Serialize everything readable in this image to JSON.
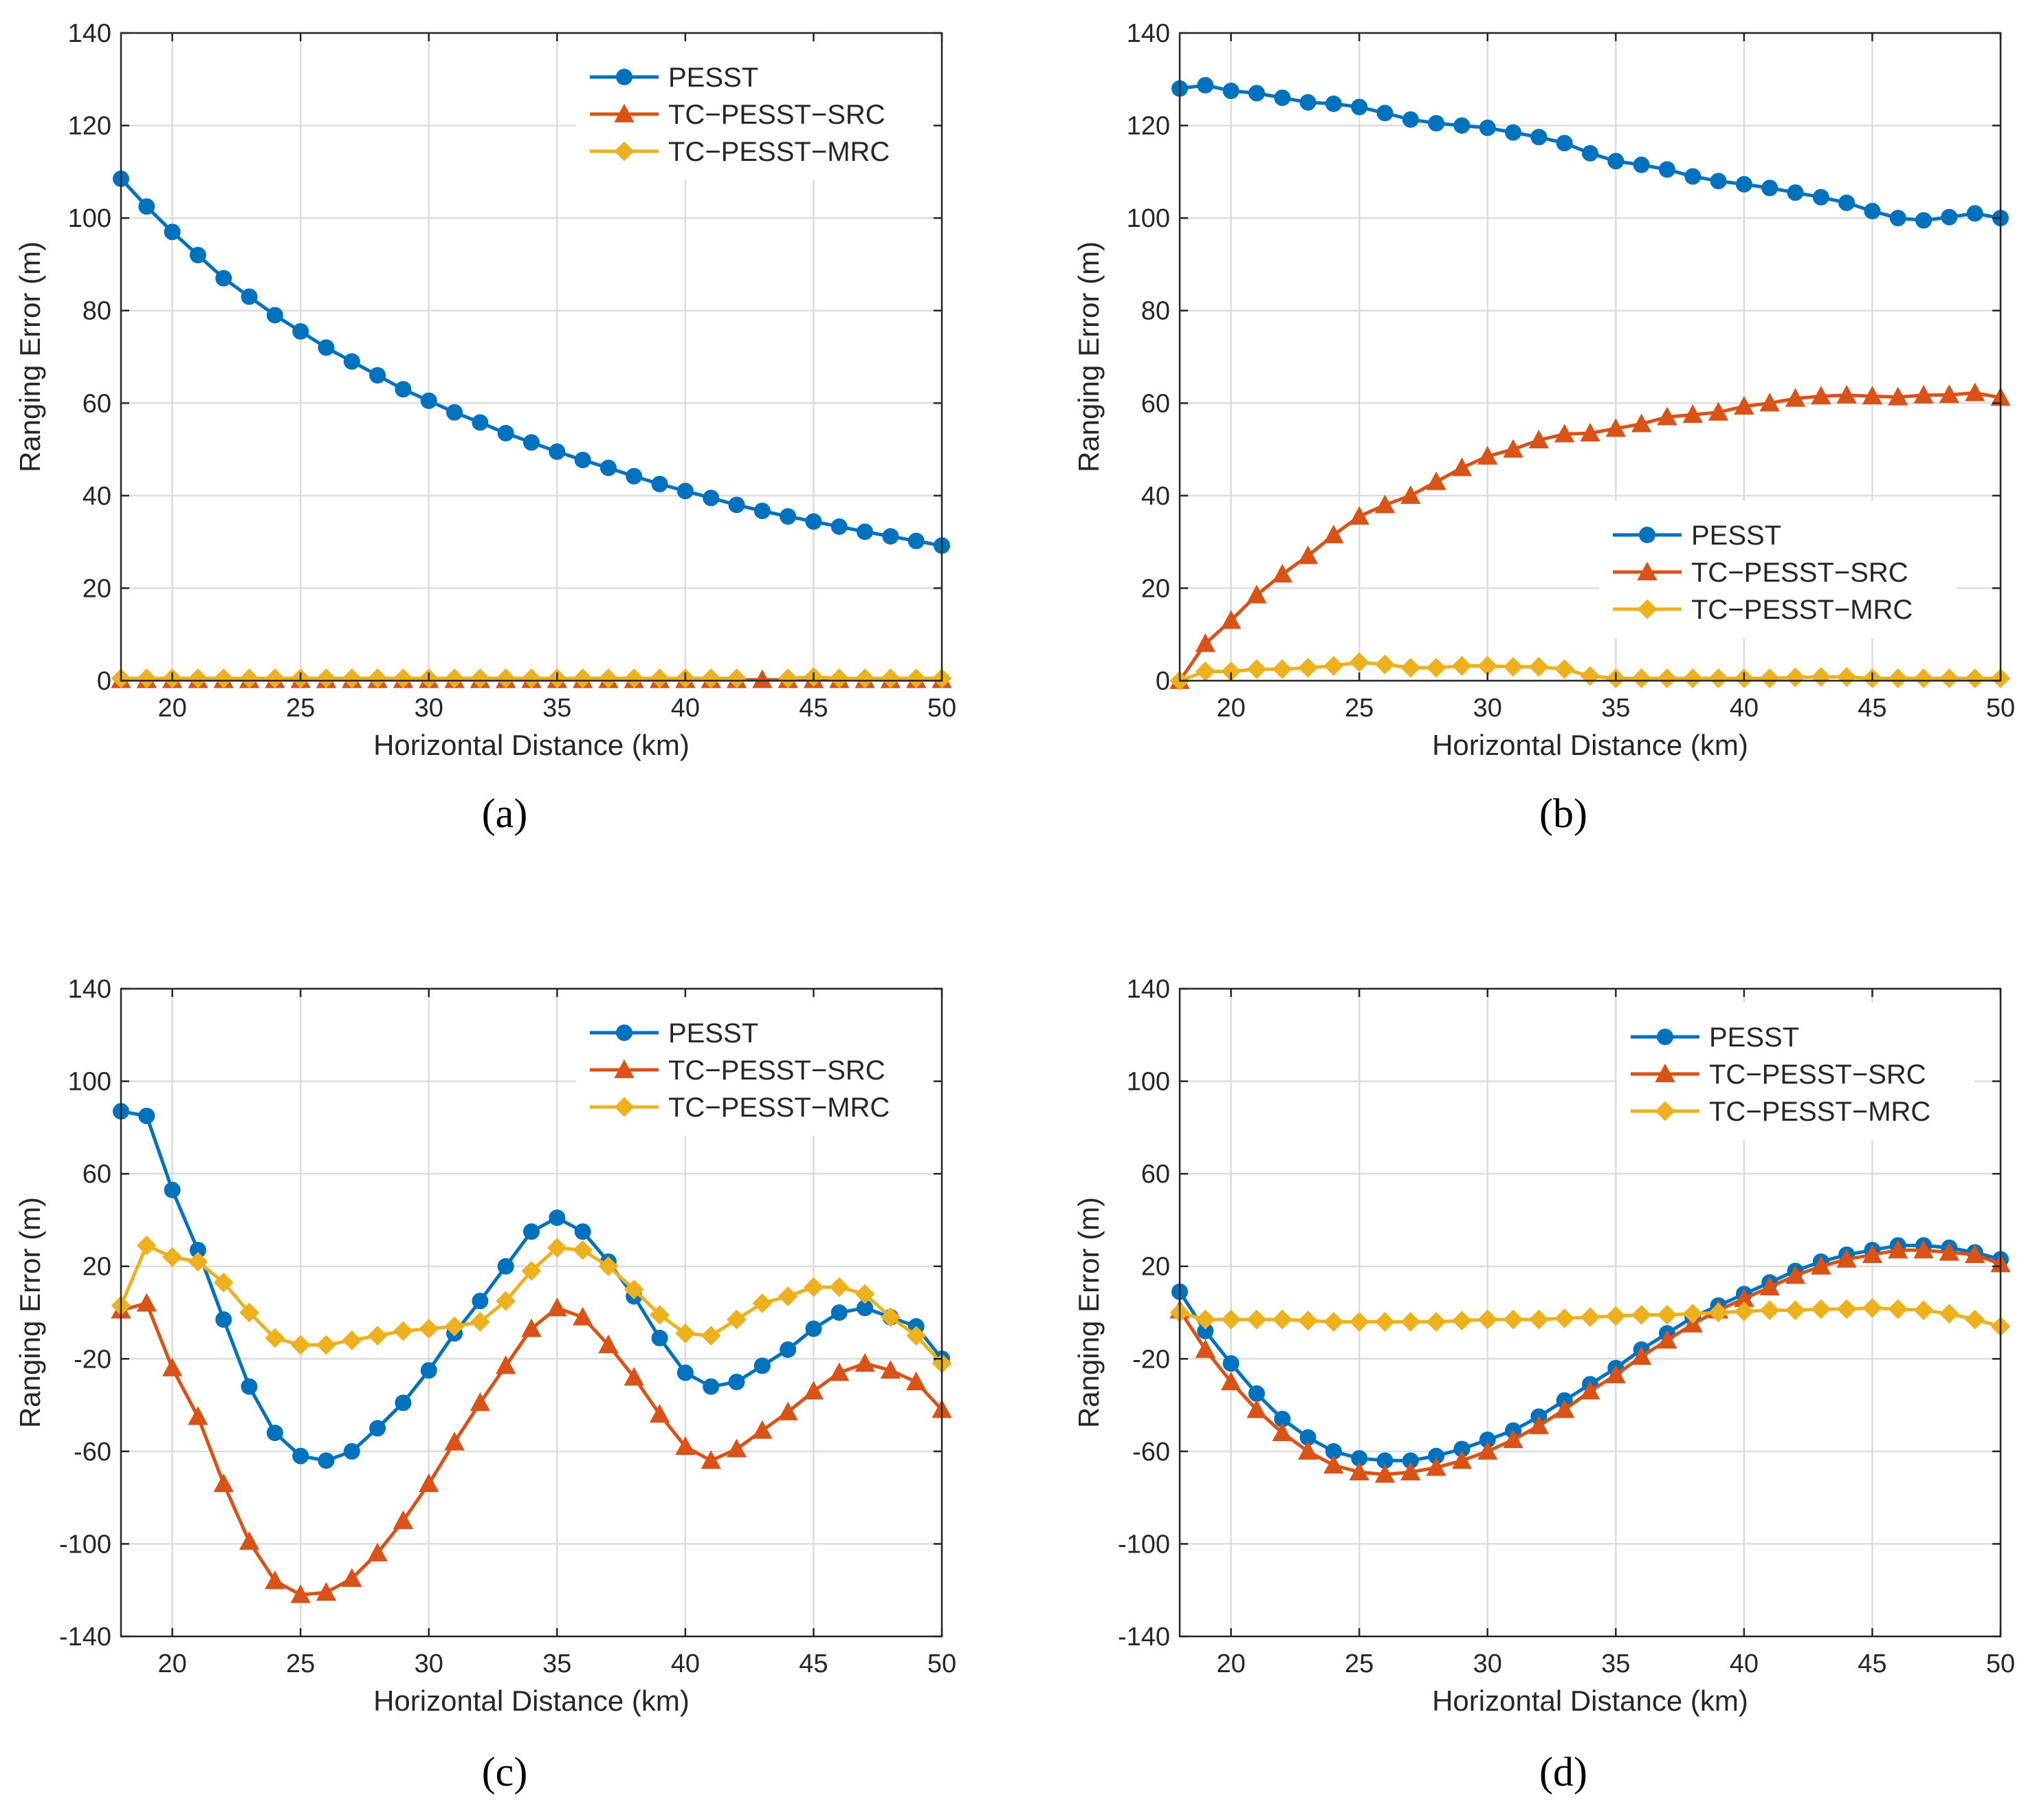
{
  "colors": {
    "PESST": "#0072BD",
    "SRC": "#D95319",
    "MRC": "#EDB120"
  },
  "chart_data": [
    {
      "type": "line",
      "panel_label": "(a)",
      "xlabel": "Horizontal Distance (km)",
      "ylabel": "Ranging Error (m)",
      "xlim": [
        18,
        50
      ],
      "ylim": [
        0,
        140
      ],
      "xticks": [
        20,
        25,
        30,
        35,
        40,
        45,
        50
      ],
      "yticks": [
        0,
        20,
        40,
        60,
        80,
        100,
        120,
        140
      ],
      "ytick_labels": [
        "0",
        "20",
        "40",
        "60",
        "80",
        "100",
        "120",
        "140"
      ],
      "grid": true,
      "legend_position": "top-right",
      "x": [
        18,
        19,
        20,
        21,
        22,
        23,
        24,
        25,
        26,
        27,
        28,
        29,
        30,
        31,
        32,
        33,
        34,
        35,
        36,
        37,
        38,
        39,
        40,
        41,
        42,
        43,
        44,
        45,
        46,
        47,
        48,
        49,
        50
      ],
      "series": [
        {
          "name": "PESST",
          "marker": "circle",
          "color_key": "PESST",
          "values": [
            108.5,
            102.5,
            97,
            92,
            87,
            83,
            79,
            75.5,
            72,
            69,
            66,
            63,
            60.5,
            58,
            55.8,
            53.5,
            51.5,
            49.5,
            47.7,
            46,
            44.2,
            42.5,
            41,
            39.5,
            38,
            36.7,
            35.5,
            34.4,
            33.3,
            32.2,
            31.2,
            30.2,
            29.2
          ]
        },
        {
          "name": "TC−PESST−SRC",
          "marker": "triangle",
          "color_key": "SRC",
          "values": [
            0.2,
            0.2,
            0.2,
            0.2,
            0.2,
            0.2,
            0.2,
            0.2,
            0.2,
            0.2,
            0.2,
            0.2,
            0.2,
            0.2,
            0.2,
            0.2,
            0.2,
            0.2,
            0.2,
            0.2,
            0.2,
            0.2,
            0.2,
            0.2,
            0.2,
            0.2,
            0.2,
            0.2,
            0.2,
            0.2,
            0.2,
            0.2,
            0.2
          ]
        },
        {
          "name": "TC−PESST−MRC",
          "marker": "diamond",
          "color_key": "MRC",
          "values": [
            0.5,
            0.5,
            0.5,
            0.5,
            0.5,
            0.5,
            0.5,
            0.5,
            0.5,
            0.5,
            0.5,
            0.5,
            0.5,
            0.5,
            0.5,
            0.5,
            0.5,
            0.5,
            0.5,
            0.5,
            0.5,
            0.5,
            0.5,
            0.5,
            0.5,
            null,
            0.5,
            0.8,
            0.5,
            0.5,
            0.5,
            0.5,
            0.5
          ]
        }
      ]
    },
    {
      "type": "line",
      "panel_label": "(b)",
      "xlabel": "Horizontal Distance (km)",
      "ylabel": "Ranging Error (m)",
      "xlim": [
        18,
        50
      ],
      "ylim": [
        0,
        140
      ],
      "xticks": [
        20,
        25,
        30,
        35,
        40,
        45,
        50
      ],
      "yticks": [
        0,
        20,
        40,
        60,
        80,
        100,
        120,
        140
      ],
      "ytick_labels": [
        "0",
        "20",
        "40",
        "60",
        "80",
        "100",
        "120",
        "140"
      ],
      "grid": true,
      "legend_position": "lower-right",
      "x": [
        18,
        19,
        20,
        21,
        22,
        23,
        24,
        25,
        26,
        27,
        28,
        29,
        30,
        31,
        32,
        33,
        34,
        35,
        36,
        37,
        38,
        39,
        40,
        41,
        42,
        43,
        44,
        45,
        46,
        47,
        48,
        49,
        50
      ],
      "series": [
        {
          "name": "PESST",
          "marker": "circle",
          "color_key": "PESST",
          "values": [
            128,
            128.7,
            127.5,
            127,
            126,
            125,
            124.7,
            124,
            122.7,
            121.3,
            120.5,
            120,
            119.5,
            118.5,
            117.5,
            116.2,
            114,
            112.3,
            111.5,
            110.5,
            109,
            108,
            107.3,
            106.5,
            105.5,
            104.5,
            103.3,
            101.5,
            100,
            99.5,
            100.2,
            101,
            100
          ]
        },
        {
          "name": "TC−PESST−SRC",
          "marker": "triangle",
          "color_key": "SRC",
          "values": [
            0,
            8,
            13,
            18.5,
            23,
            27,
            31.5,
            35.5,
            38,
            40,
            43,
            46,
            48.5,
            50,
            52,
            53.3,
            53.5,
            54.5,
            55.5,
            57,
            57.5,
            58,
            59.3,
            60,
            61,
            61.5,
            61.7,
            61.5,
            61.3,
            61.7,
            61.8,
            62.2,
            61.2
          ]
        },
        {
          "name": "TC−PESST−MRC",
          "marker": "diamond",
          "color_key": "MRC",
          "values": [
            0,
            2,
            2,
            2.5,
            2.5,
            2.8,
            3.2,
            4,
            3.5,
            2.8,
            2.8,
            3.2,
            3.2,
            3,
            3,
            2.5,
            1,
            0.5,
            0.5,
            0.5,
            0.5,
            0.5,
            0.5,
            0.5,
            0.7,
            0.8,
            0.8,
            0.5,
            0.5,
            0.5,
            0.5,
            0.5,
            0.5
          ]
        }
      ]
    },
    {
      "type": "line",
      "panel_label": "(c)",
      "xlabel": "Horizontal Distance (km)",
      "ylabel": "Ranging Error (m)",
      "xlim": [
        18,
        50
      ],
      "ylim": [
        -140,
        140
      ],
      "xticks": [
        20,
        25,
        30,
        35,
        40,
        45,
        50
      ],
      "yticks": [
        -140,
        -100,
        -60,
        -20,
        20,
        60,
        100,
        140
      ],
      "ytick_labels": [
        "-140",
        "-100",
        "-60",
        "-20",
        "20",
        "60",
        "100",
        "140"
      ],
      "grid": true,
      "legend_position": "top-right",
      "x": [
        18,
        19,
        20,
        21,
        22,
        23,
        24,
        25,
        26,
        27,
        28,
        29,
        30,
        31,
        32,
        33,
        34,
        35,
        36,
        37,
        38,
        39,
        40,
        41,
        42,
        43,
        44,
        45,
        46,
        47,
        48,
        49,
        50
      ],
      "series": [
        {
          "name": "PESST",
          "marker": "circle",
          "color_key": "PESST",
          "values": [
            87,
            85,
            53,
            27,
            -3,
            -32,
            -52,
            -62,
            -64,
            -60,
            -50,
            -39,
            -25,
            -9,
            5,
            20,
            35,
            41,
            35,
            22,
            7,
            -11,
            -26,
            -32,
            -30,
            -23,
            -16,
            -7,
            0,
            2,
            -2,
            -6,
            -20
          ]
        },
        {
          "name": "TC−PESST−SRC",
          "marker": "triangle",
          "color_key": "SRC",
          "values": [
            1,
            4,
            -24,
            -45,
            -74,
            -99,
            -116,
            -122,
            -121,
            -115,
            -104,
            -90,
            -74,
            -56,
            -39,
            -23,
            -7,
            2,
            -2,
            -14,
            -28,
            -44,
            -58,
            -64,
            -59,
            -51,
            -43,
            -34,
            -26,
            -22,
            -25,
            -30,
            -42
          ]
        },
        {
          "name": "TC−PESST−MRC",
          "marker": "diamond",
          "color_key": "MRC",
          "values": [
            3,
            29,
            24,
            22,
            13,
            0,
            -11,
            -14,
            -14,
            -12,
            -10,
            -8,
            -7,
            -6,
            -4,
            5,
            18,
            28,
            27,
            20,
            10,
            -1,
            -9,
            -10,
            -3,
            4,
            7,
            11,
            11,
            8,
            -2,
            -10,
            -22
          ]
        }
      ]
    },
    {
      "type": "line",
      "panel_label": "(d)",
      "xlabel": "Horizontal Distance (km)",
      "ylabel": "Ranging Error (m)",
      "xlim": [
        18,
        50
      ],
      "ylim": [
        -140,
        140
      ],
      "xticks": [
        20,
        25,
        30,
        35,
        40,
        45,
        50
      ],
      "yticks": [
        -140,
        -100,
        -60,
        -20,
        20,
        60,
        100,
        140
      ],
      "ytick_labels": [
        "-140",
        "-100",
        "-60",
        "-20",
        "20",
        "60",
        "100",
        "140"
      ],
      "grid": true,
      "legend_position": "top-right",
      "x": [
        18,
        19,
        20,
        21,
        22,
        23,
        24,
        25,
        26,
        27,
        28,
        29,
        30,
        31,
        32,
        33,
        34,
        35,
        36,
        37,
        38,
        39,
        40,
        41,
        42,
        43,
        44,
        45,
        46,
        47,
        48,
        49,
        50
      ],
      "series": [
        {
          "name": "PESST",
          "marker": "circle",
          "color_key": "PESST",
          "values": [
            9,
            -8,
            -22,
            -35,
            -46,
            -54,
            -60,
            -63,
            -64,
            -64,
            -62,
            -59,
            -55,
            -51,
            -45,
            -38,
            -31,
            -24,
            -16,
            -9,
            -2,
            3,
            8,
            13,
            18,
            22,
            25,
            27,
            29,
            29,
            28,
            26,
            23
          ]
        },
        {
          "name": "TC−PESST−SRC",
          "marker": "triangle",
          "color_key": "SRC",
          "values": [
            1,
            -16,
            -30,
            -42,
            -52,
            -60,
            -66,
            -69,
            -70,
            -69,
            -67,
            -64,
            -60,
            -55,
            -49,
            -42,
            -34,
            -27,
            -19,
            -12,
            -5,
            1,
            6,
            11,
            16,
            20,
            23,
            25,
            27,
            27,
            26,
            25,
            21
          ]
        },
        {
          "name": "TC−PESST−MRC",
          "marker": "diamond",
          "color_key": "MRC",
          "values": [
            0,
            -3,
            -3,
            -3,
            -3,
            -3.5,
            -4,
            -4,
            -4,
            -4,
            -4,
            -3.5,
            -3,
            -3,
            -3,
            -2.5,
            -2,
            -1.5,
            -1,
            -1,
            -0.5,
            0,
            0.5,
            1,
            1,
            1.5,
            1.5,
            2,
            1.5,
            1,
            -0.5,
            -3,
            -6
          ]
        }
      ]
    }
  ]
}
